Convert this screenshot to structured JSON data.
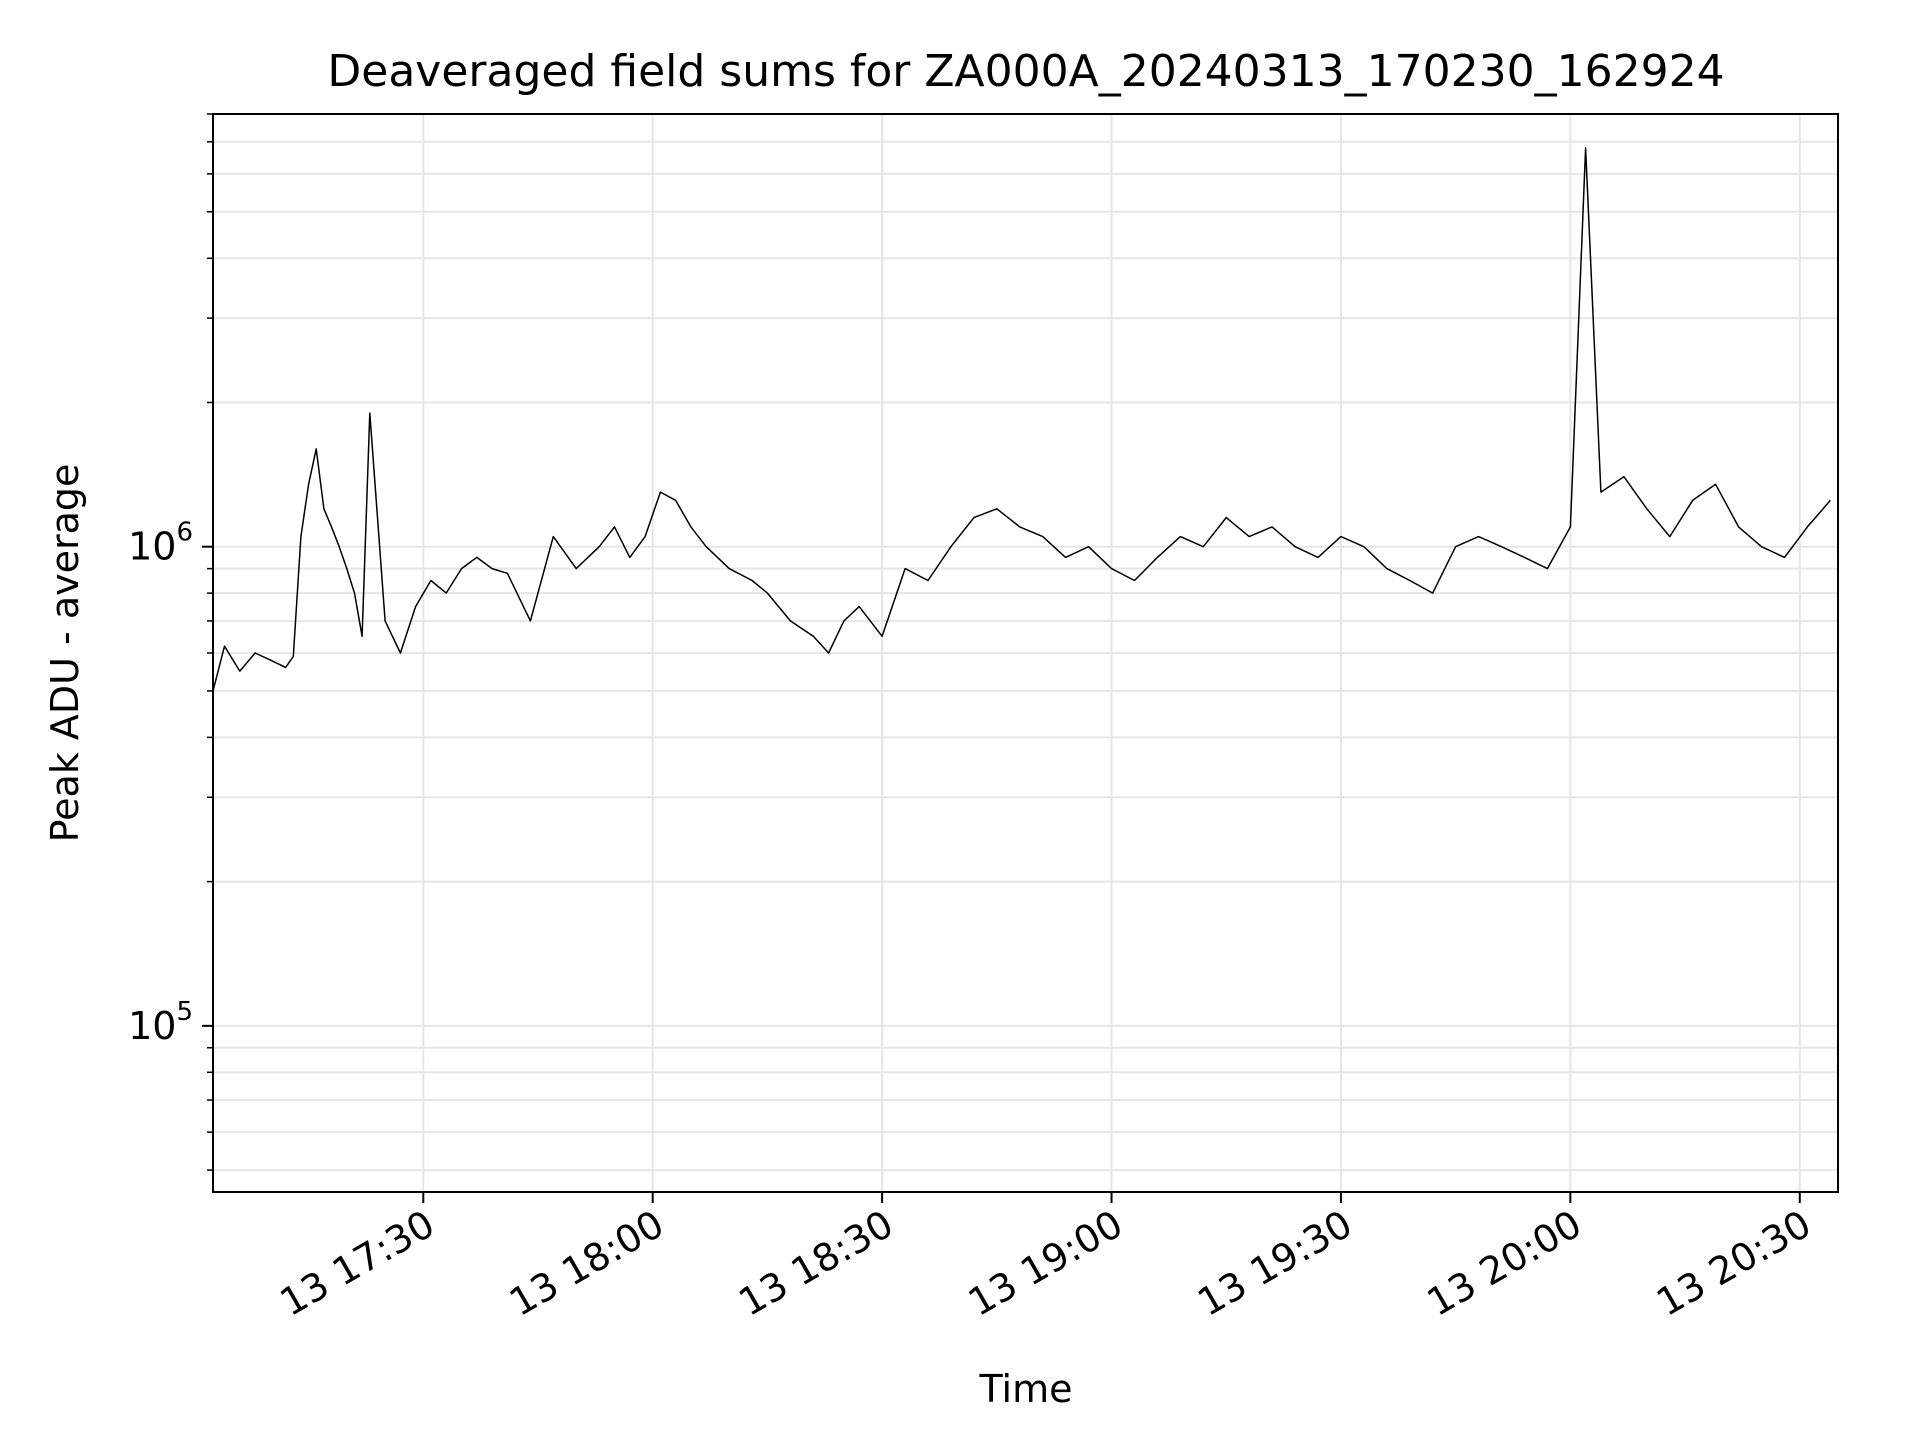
{
  "chart_data": {
    "type": "line",
    "title": "Deaveraged field sums for ZA000A_20240313_170230_162924",
    "xlabel": "Time",
    "ylabel": "Peak ADU - average",
    "yscale": "log",
    "ylim": [
      45000,
      8000000
    ],
    "xlim": [
      "2024-03-13 17:02:30",
      "2024-03-13 20:35:00"
    ],
    "grid": true,
    "line_color": "#000000",
    "grid_color": "#e6e6e6",
    "x_ticks": [
      {
        "value": "2024-03-13 17:30",
        "label": "13 17:30"
      },
      {
        "value": "2024-03-13 18:00",
        "label": "13 18:00"
      },
      {
        "value": "2024-03-13 18:30",
        "label": "13 18:30"
      },
      {
        "value": "2024-03-13 19:00",
        "label": "13 19:00"
      },
      {
        "value": "2024-03-13 19:30",
        "label": "13 19:30"
      },
      {
        "value": "2024-03-13 20:00",
        "label": "13 20:00"
      },
      {
        "value": "2024-03-13 20:30",
        "label": "13 20:30"
      }
    ],
    "y_ticks": [
      {
        "value": 100000,
        "base": "10",
        "exp": "5"
      },
      {
        "value": 1000000,
        "base": "10",
        "exp": "6"
      }
    ],
    "series": [
      {
        "x": [
          "2024-03-13 17:02:30",
          "2024-03-13 17:04:00",
          "2024-03-13 17:06:00",
          "2024-03-13 17:08:00",
          "2024-03-13 17:10:00",
          "2024-03-13 17:12:00",
          "2024-03-13 17:13:00",
          "2024-03-13 17:14:00",
          "2024-03-13 17:15:00",
          "2024-03-13 17:16:00",
          "2024-03-13 17:17:00",
          "2024-03-13 17:18:00",
          "2024-03-13 17:19:00",
          "2024-03-13 17:20:00",
          "2024-03-13 17:21:00",
          "2024-03-13 17:22:00",
          "2024-03-13 17:23:00",
          "2024-03-13 17:25:00",
          "2024-03-13 17:27:00",
          "2024-03-13 17:29:00",
          "2024-03-13 17:31:00",
          "2024-03-13 17:33:00",
          "2024-03-13 17:35:00",
          "2024-03-13 17:37:00",
          "2024-03-13 17:39:00",
          "2024-03-13 17:41:00",
          "2024-03-13 17:44:00",
          "2024-03-13 17:47:00",
          "2024-03-13 17:50:00",
          "2024-03-13 17:53:00",
          "2024-03-13 17:55:00",
          "2024-03-13 17:57:00",
          "2024-03-13 17:59:00",
          "2024-03-13 18:01:00",
          "2024-03-13 18:03:00",
          "2024-03-13 18:05:00",
          "2024-03-13 18:07:00",
          "2024-03-13 18:10:00",
          "2024-03-13 18:13:00",
          "2024-03-13 18:15:00",
          "2024-03-13 18:18:00",
          "2024-03-13 18:21:00",
          "2024-03-13 18:23:00",
          "2024-03-13 18:25:00",
          "2024-03-13 18:27:00",
          "2024-03-13 18:30:00",
          "2024-03-13 18:33:00",
          "2024-03-13 18:36:00",
          "2024-03-13 18:39:00",
          "2024-03-13 18:42:00",
          "2024-03-13 18:45:00",
          "2024-03-13 18:48:00",
          "2024-03-13 18:51:00",
          "2024-03-13 18:54:00",
          "2024-03-13 18:57:00",
          "2024-03-13 19:00:00",
          "2024-03-13 19:03:00",
          "2024-03-13 19:06:00",
          "2024-03-13 19:09:00",
          "2024-03-13 19:12:00",
          "2024-03-13 19:15:00",
          "2024-03-13 19:18:00",
          "2024-03-13 19:21:00",
          "2024-03-13 19:24:00",
          "2024-03-13 19:27:00",
          "2024-03-13 19:30:00",
          "2024-03-13 19:33:00",
          "2024-03-13 19:36:00",
          "2024-03-13 19:39:00",
          "2024-03-13 19:42:00",
          "2024-03-13 19:45:00",
          "2024-03-13 19:48:00",
          "2024-03-13 19:51:00",
          "2024-03-13 19:54:00",
          "2024-03-13 19:57:00",
          "2024-03-13 20:00:00",
          "2024-03-13 20:02:00",
          "2024-03-13 20:04:00",
          "2024-03-13 20:07:00",
          "2024-03-13 20:10:00",
          "2024-03-13 20:13:00",
          "2024-03-13 20:16:00",
          "2024-03-13 20:19:00",
          "2024-03-13 20:22:00",
          "2024-03-13 20:25:00",
          "2024-03-13 20:28:00",
          "2024-03-13 20:31:00",
          "2024-03-13 20:34:00"
        ],
        "y": [
          500000,
          620000,
          550000,
          600000,
          580000,
          560000,
          590000,
          1050000,
          1350000,
          1600000,
          1200000,
          1100000,
          1000000,
          900000,
          800000,
          650000,
          1900000,
          700000,
          600000,
          750000,
          850000,
          800000,
          900000,
          950000,
          900000,
          880000,
          700000,
          1050000,
          900000,
          1000000,
          1100000,
          950000,
          1050000,
          1300000,
          1250000,
          1100000,
          1000000,
          900000,
          850000,
          800000,
          700000,
          650000,
          600000,
          700000,
          750000,
          650000,
          900000,
          850000,
          1000000,
          1150000,
          1200000,
          1100000,
          1050000,
          950000,
          1000000,
          900000,
          850000,
          950000,
          1050000,
          1000000,
          1150000,
          1050000,
          1100000,
          1000000,
          950000,
          1050000,
          1000000,
          900000,
          850000,
          800000,
          1000000,
          1050000,
          1000000,
          950000,
          900000,
          1100000,
          6800000,
          1300000,
          1400000,
          1200000,
          1050000,
          1250000,
          1350000,
          1100000,
          1000000,
          950000,
          1100000,
          1250000
        ]
      }
    ]
  }
}
